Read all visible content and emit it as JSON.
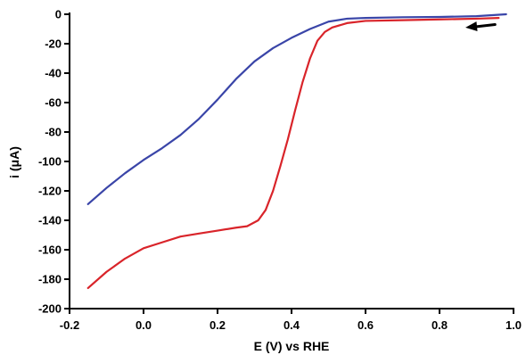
{
  "chart_data": {
    "type": "line",
    "xlabel": "E (V) vs RHE",
    "ylabel": "i (μA)",
    "xlim": [
      -0.2,
      1.0
    ],
    "ylim": [
      -200,
      0
    ],
    "x_ticks": [
      "-0.2",
      "0.0",
      "0.2",
      "0.4",
      "0.6",
      "0.8",
      "1.0"
    ],
    "y_ticks": [
      "0",
      "-20",
      "-40",
      "-60",
      "-80",
      "-100",
      "-120",
      "-140",
      "-160",
      "-180",
      "-200"
    ],
    "x_tick_values": [
      -0.2,
      0.0,
      0.2,
      0.4,
      0.6,
      0.8,
      1.0
    ],
    "y_tick_values": [
      0,
      -20,
      -40,
      -60,
      -80,
      -100,
      -120,
      -140,
      -160,
      -180,
      -200
    ],
    "grid": false,
    "legend": "none",
    "annotation": {
      "type": "arrow",
      "direction": "left",
      "from": [
        0.95,
        -7
      ],
      "to": [
        0.87,
        -9
      ]
    },
    "series": [
      {
        "color": "#3a45a8",
        "points": [
          [
            -0.15,
            -129
          ],
          [
            -0.1,
            -118
          ],
          [
            -0.05,
            -108
          ],
          [
            0.0,
            -99
          ],
          [
            0.05,
            -91
          ],
          [
            0.1,
            -82
          ],
          [
            0.15,
            -71
          ],
          [
            0.2,
            -58
          ],
          [
            0.25,
            -44
          ],
          [
            0.3,
            -32
          ],
          [
            0.35,
            -23
          ],
          [
            0.4,
            -16
          ],
          [
            0.45,
            -10
          ],
          [
            0.5,
            -5
          ],
          [
            0.55,
            -3
          ],
          [
            0.6,
            -2.5
          ],
          [
            0.7,
            -2
          ],
          [
            0.8,
            -1.8
          ],
          [
            0.9,
            -1.3
          ],
          [
            0.98,
            0
          ]
        ]
      },
      {
        "color": "#d9242a",
        "points": [
          [
            -0.15,
            -186
          ],
          [
            -0.1,
            -175
          ],
          [
            -0.05,
            -166
          ],
          [
            0.0,
            -159
          ],
          [
            0.05,
            -155
          ],
          [
            0.1,
            -151
          ],
          [
            0.15,
            -149
          ],
          [
            0.2,
            -147
          ],
          [
            0.25,
            -145
          ],
          [
            0.28,
            -144
          ],
          [
            0.31,
            -140
          ],
          [
            0.33,
            -133
          ],
          [
            0.35,
            -120
          ],
          [
            0.37,
            -103
          ],
          [
            0.39,
            -85
          ],
          [
            0.41,
            -65
          ],
          [
            0.43,
            -46
          ],
          [
            0.45,
            -30
          ],
          [
            0.47,
            -18
          ],
          [
            0.49,
            -12
          ],
          [
            0.51,
            -9
          ],
          [
            0.55,
            -6
          ],
          [
            0.6,
            -4.5
          ],
          [
            0.7,
            -4
          ],
          [
            0.8,
            -3.5
          ],
          [
            0.9,
            -3
          ],
          [
            0.96,
            -2.5
          ]
        ]
      }
    ]
  }
}
